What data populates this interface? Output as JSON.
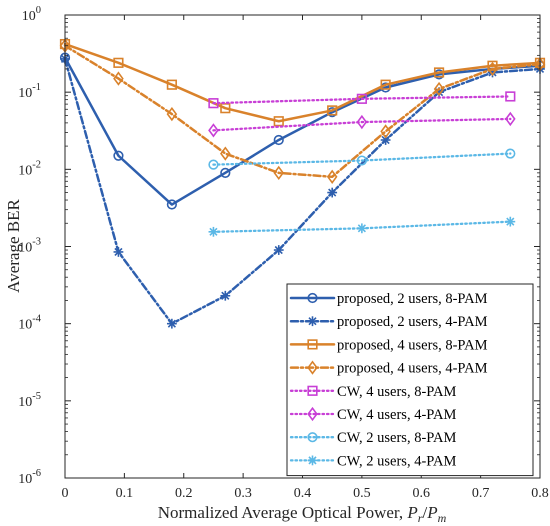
{
  "chart_data": {
    "type": "line",
    "xlabel": "Normalized Average Optical Power, ",
    "xlabel_math": {
      "base": "P",
      "sub1": "r",
      "slash": "/",
      "base2": "P",
      "sub2": "m"
    },
    "ylabel": "Average BER",
    "xlim": [
      0,
      0.8
    ],
    "ylim": [
      1e-06,
      1
    ],
    "yscale": "log",
    "grid": false,
    "legend_position": "bottom-right",
    "x_ticks": [
      {
        "value": 0,
        "label": "0"
      },
      {
        "value": 0.1,
        "label": "0.1"
      },
      {
        "value": 0.2,
        "label": "0.2"
      },
      {
        "value": 0.3,
        "label": "0.3"
      },
      {
        "value": 0.4,
        "label": "0.4"
      },
      {
        "value": 0.5,
        "label": "0.5"
      },
      {
        "value": 0.6,
        "label": "0.6"
      },
      {
        "value": 0.7,
        "label": "0.7"
      },
      {
        "value": 0.8,
        "label": "0.8"
      }
    ],
    "y_ticks": [
      {
        "value": 1,
        "base": "10",
        "exp": "0"
      },
      {
        "value": 0.1,
        "base": "10",
        "exp": "-1"
      },
      {
        "value": 0.01,
        "base": "10",
        "exp": "-2"
      },
      {
        "value": 0.001,
        "base": "10",
        "exp": "-3"
      },
      {
        "value": 0.0001,
        "base": "10",
        "exp": "-4"
      },
      {
        "value": 1e-05,
        "base": "10",
        "exp": "-5"
      },
      {
        "value": 1e-06,
        "base": "10",
        "exp": "-6"
      }
    ],
    "series": [
      {
        "name": "proposed, 2 users, 8-PAM",
        "color": "#2E5FAE",
        "dash": "solid",
        "marker": "circle",
        "x": [
          0,
          0.09,
          0.18,
          0.27,
          0.36,
          0.45,
          0.54,
          0.63,
          0.72,
          0.8
        ],
        "y": [
          0.28,
          0.015,
          0.0035,
          0.009,
          0.024,
          0.055,
          0.115,
          0.17,
          0.2,
          0.22
        ]
      },
      {
        "name": "proposed, 2 users, 4-PAM",
        "color": "#2E5FAE",
        "dash": "dashdot",
        "marker": "asterisk",
        "x": [
          0,
          0.09,
          0.18,
          0.27,
          0.36,
          0.45,
          0.54,
          0.63,
          0.72,
          0.8
        ],
        "y": [
          0.27,
          0.00085,
          0.0001,
          0.00023,
          0.0009,
          0.005,
          0.024,
          0.1,
          0.18,
          0.2
        ]
      },
      {
        "name": "proposed, 4 users, 8-PAM",
        "color": "#D9822B",
        "dash": "solid",
        "marker": "square",
        "x": [
          0,
          0.09,
          0.18,
          0.27,
          0.36,
          0.45,
          0.54,
          0.63,
          0.72,
          0.8
        ],
        "y": [
          0.42,
          0.24,
          0.125,
          0.062,
          0.042,
          0.058,
          0.125,
          0.18,
          0.22,
          0.24
        ]
      },
      {
        "name": "proposed, 4 users, 4-PAM",
        "color": "#D9822B",
        "dash": "dashdot",
        "marker": "diamond",
        "x": [
          0,
          0.09,
          0.18,
          0.27,
          0.36,
          0.45,
          0.54,
          0.63,
          0.72,
          0.8
        ],
        "y": [
          0.4,
          0.15,
          0.052,
          0.016,
          0.009,
          0.008,
          0.031,
          0.11,
          0.2,
          0.23
        ]
      },
      {
        "name": "CW, 4 users, 8-PAM",
        "color": "#C83FD6",
        "dash": "dotted",
        "marker": "square",
        "x": [
          0.25,
          0.5,
          0.75
        ],
        "y": [
          0.072,
          0.082,
          0.088
        ]
      },
      {
        "name": "CW, 4 users, 4-PAM",
        "color": "#C83FD6",
        "dash": "dotted",
        "marker": "diamond",
        "x": [
          0.25,
          0.5,
          0.75
        ],
        "y": [
          0.032,
          0.041,
          0.045
        ]
      },
      {
        "name": "CW, 2 users, 8-PAM",
        "color": "#5BB8E6",
        "dash": "dotted",
        "marker": "circle",
        "x": [
          0.25,
          0.5,
          0.75
        ],
        "y": [
          0.0115,
          0.013,
          0.016
        ]
      },
      {
        "name": "CW, 2 users, 4-PAM",
        "color": "#5BB8E6",
        "dash": "dotted",
        "marker": "asterisk",
        "x": [
          0.25,
          0.5,
          0.75
        ],
        "y": [
          0.00155,
          0.00172,
          0.0021
        ]
      }
    ]
  }
}
